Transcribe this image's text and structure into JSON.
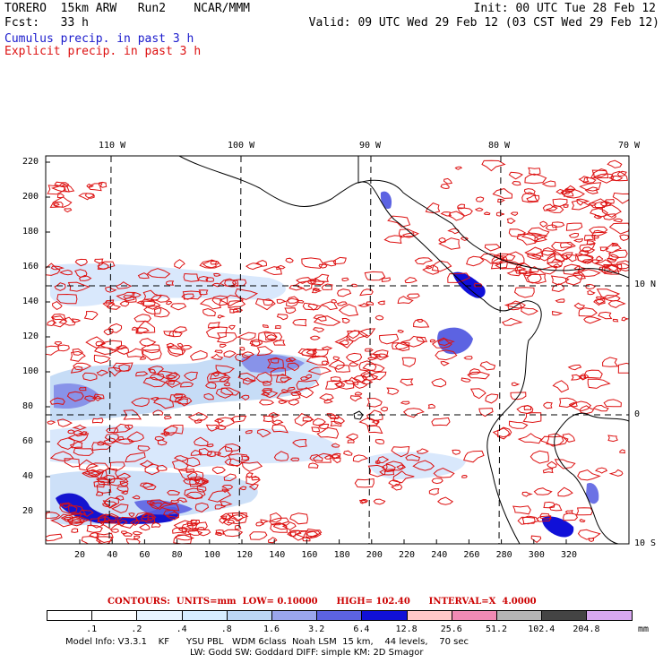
{
  "header": {
    "model": "TORERO",
    "resolution": "15km ARW",
    "run": "Run2",
    "center": "NCAR/MMM",
    "init": "Init: 00 UTC Tue 28 Feb 12",
    "fcst_label": "Fcst:",
    "fcst_value": "33 h",
    "valid": "Valid: 09 UTC Wed 29 Feb 12 (03 CST Wed 29 Feb 12)",
    "cumulus_label": "Cumulus precip. in past 3 h",
    "explicit_label": "Explicit precip. in past 3 h"
  },
  "map": {
    "lon_labels": [
      "110 W",
      "100 W",
      "90 W",
      "80 W",
      "70 W"
    ],
    "lat_labels": [
      "10 N",
      "0",
      "10 S"
    ],
    "y_ticks": [
      "220",
      "200",
      "180",
      "160",
      "140",
      "120",
      "100",
      "80",
      "60",
      "40",
      "20"
    ],
    "x_ticks": [
      "20",
      "40",
      "60",
      "80",
      "100",
      "120",
      "140",
      "160",
      "180",
      "200",
      "220",
      "240",
      "260",
      "280",
      "300",
      "320"
    ]
  },
  "contours_line": "CONTOURS:  UNITS=mm  LOW= 0.10000      HIGH= 102.40      INTERVAL=X  4.0000",
  "legend": {
    "labels": [
      ".1",
      ".2",
      ".4",
      ".8",
      "1.6",
      "3.2",
      "6.4",
      "12.8",
      "25.6",
      "51.2",
      "102.4",
      "204.8"
    ],
    "unit": "mm",
    "colors": [
      "#ffffff",
      "#ffffff",
      "#e8f4ff",
      "#d6ecff",
      "#bcd6f5",
      "#9aa6ec",
      "#5c63e2",
      "#1010d8",
      "#ffc8c8",
      "#f08ab4",
      "#b4b4b4",
      "#444444",
      "#d8a8f0"
    ]
  },
  "model_info_1": "Model Info: V3.3.1    KF      YSU PBL   WDM 6class  Noah LSM  15 km,    44 levels,    70 sec",
  "model_info_2": "LW: Godd SW: Goddard DIFF: simple KM: 2D Smagor"
}
